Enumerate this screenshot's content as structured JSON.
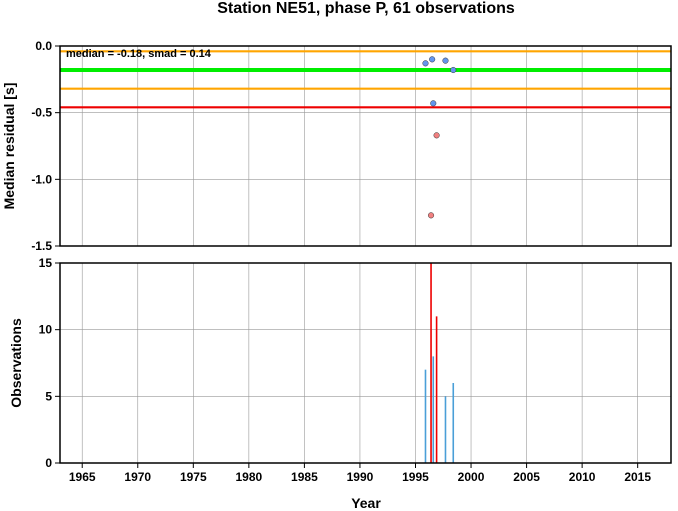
{
  "chart_data": [
    {
      "type": "scatter",
      "title": "Station NE51, phase P, 61 observations",
      "ylabel": "Median residual [s]",
      "xlim": [
        1963,
        2018
      ],
      "ylim": [
        -1.5,
        0.0
      ],
      "y_ticks": [
        "0.0",
        "-0.5",
        "-1.0",
        "-1.5"
      ],
      "y_tick_values": [
        0.0,
        -0.5,
        -1.0,
        -1.5
      ],
      "annotation": "median = -0.18, smad = 0.14",
      "grid": true,
      "reference_lines": [
        {
          "value": -0.04,
          "color": "#ffa500"
        },
        {
          "value": -0.18,
          "color": "#00ee00"
        },
        {
          "value": -0.32,
          "color": "#ffa500"
        },
        {
          "value": -0.46,
          "color": "#ee0000"
        }
      ],
      "series": [
        {
          "color": "#6495ed",
          "points": [
            {
              "x": 1995.9,
              "y": -0.13
            },
            {
              "x": 1996.5,
              "y": -0.1
            },
            {
              "x": 1997.7,
              "y": -0.11
            },
            {
              "x": 1998.4,
              "y": -0.18
            },
            {
              "x": 1996.6,
              "y": -0.43
            }
          ]
        },
        {
          "color": "#f08080",
          "points": [
            {
              "x": 1996.9,
              "y": -0.67
            },
            {
              "x": 1996.4,
              "y": -1.27
            }
          ]
        }
      ]
    },
    {
      "type": "bar",
      "xlabel": "Year",
      "ylabel": "Observations",
      "xlim": [
        1963,
        2018
      ],
      "ylim": [
        0,
        15
      ],
      "x_ticks": [
        "1965",
        "1970",
        "1975",
        "1980",
        "1985",
        "1990",
        "1995",
        "2000",
        "2005",
        "2010",
        "2015"
      ],
      "x_tick_values": [
        1965,
        1970,
        1975,
        1980,
        1985,
        1990,
        1995,
        2000,
        2005,
        2010,
        2015
      ],
      "y_ticks": [
        "0",
        "5",
        "10",
        "15"
      ],
      "y_tick_values": [
        0,
        5,
        10,
        15
      ],
      "grid": true,
      "series": [
        {
          "color": "#4a9fd8",
          "points": [
            {
              "x": 1995.9,
              "y": 7
            },
            {
              "x": 1996.6,
              "y": 8
            },
            {
              "x": 1997.7,
              "y": 5
            },
            {
              "x": 1998.4,
              "y": 6
            }
          ]
        },
        {
          "color": "#ee0000",
          "points": [
            {
              "x": 1996.4,
              "y": 15
            },
            {
              "x": 1996.9,
              "y": 11
            }
          ]
        }
      ]
    }
  ]
}
